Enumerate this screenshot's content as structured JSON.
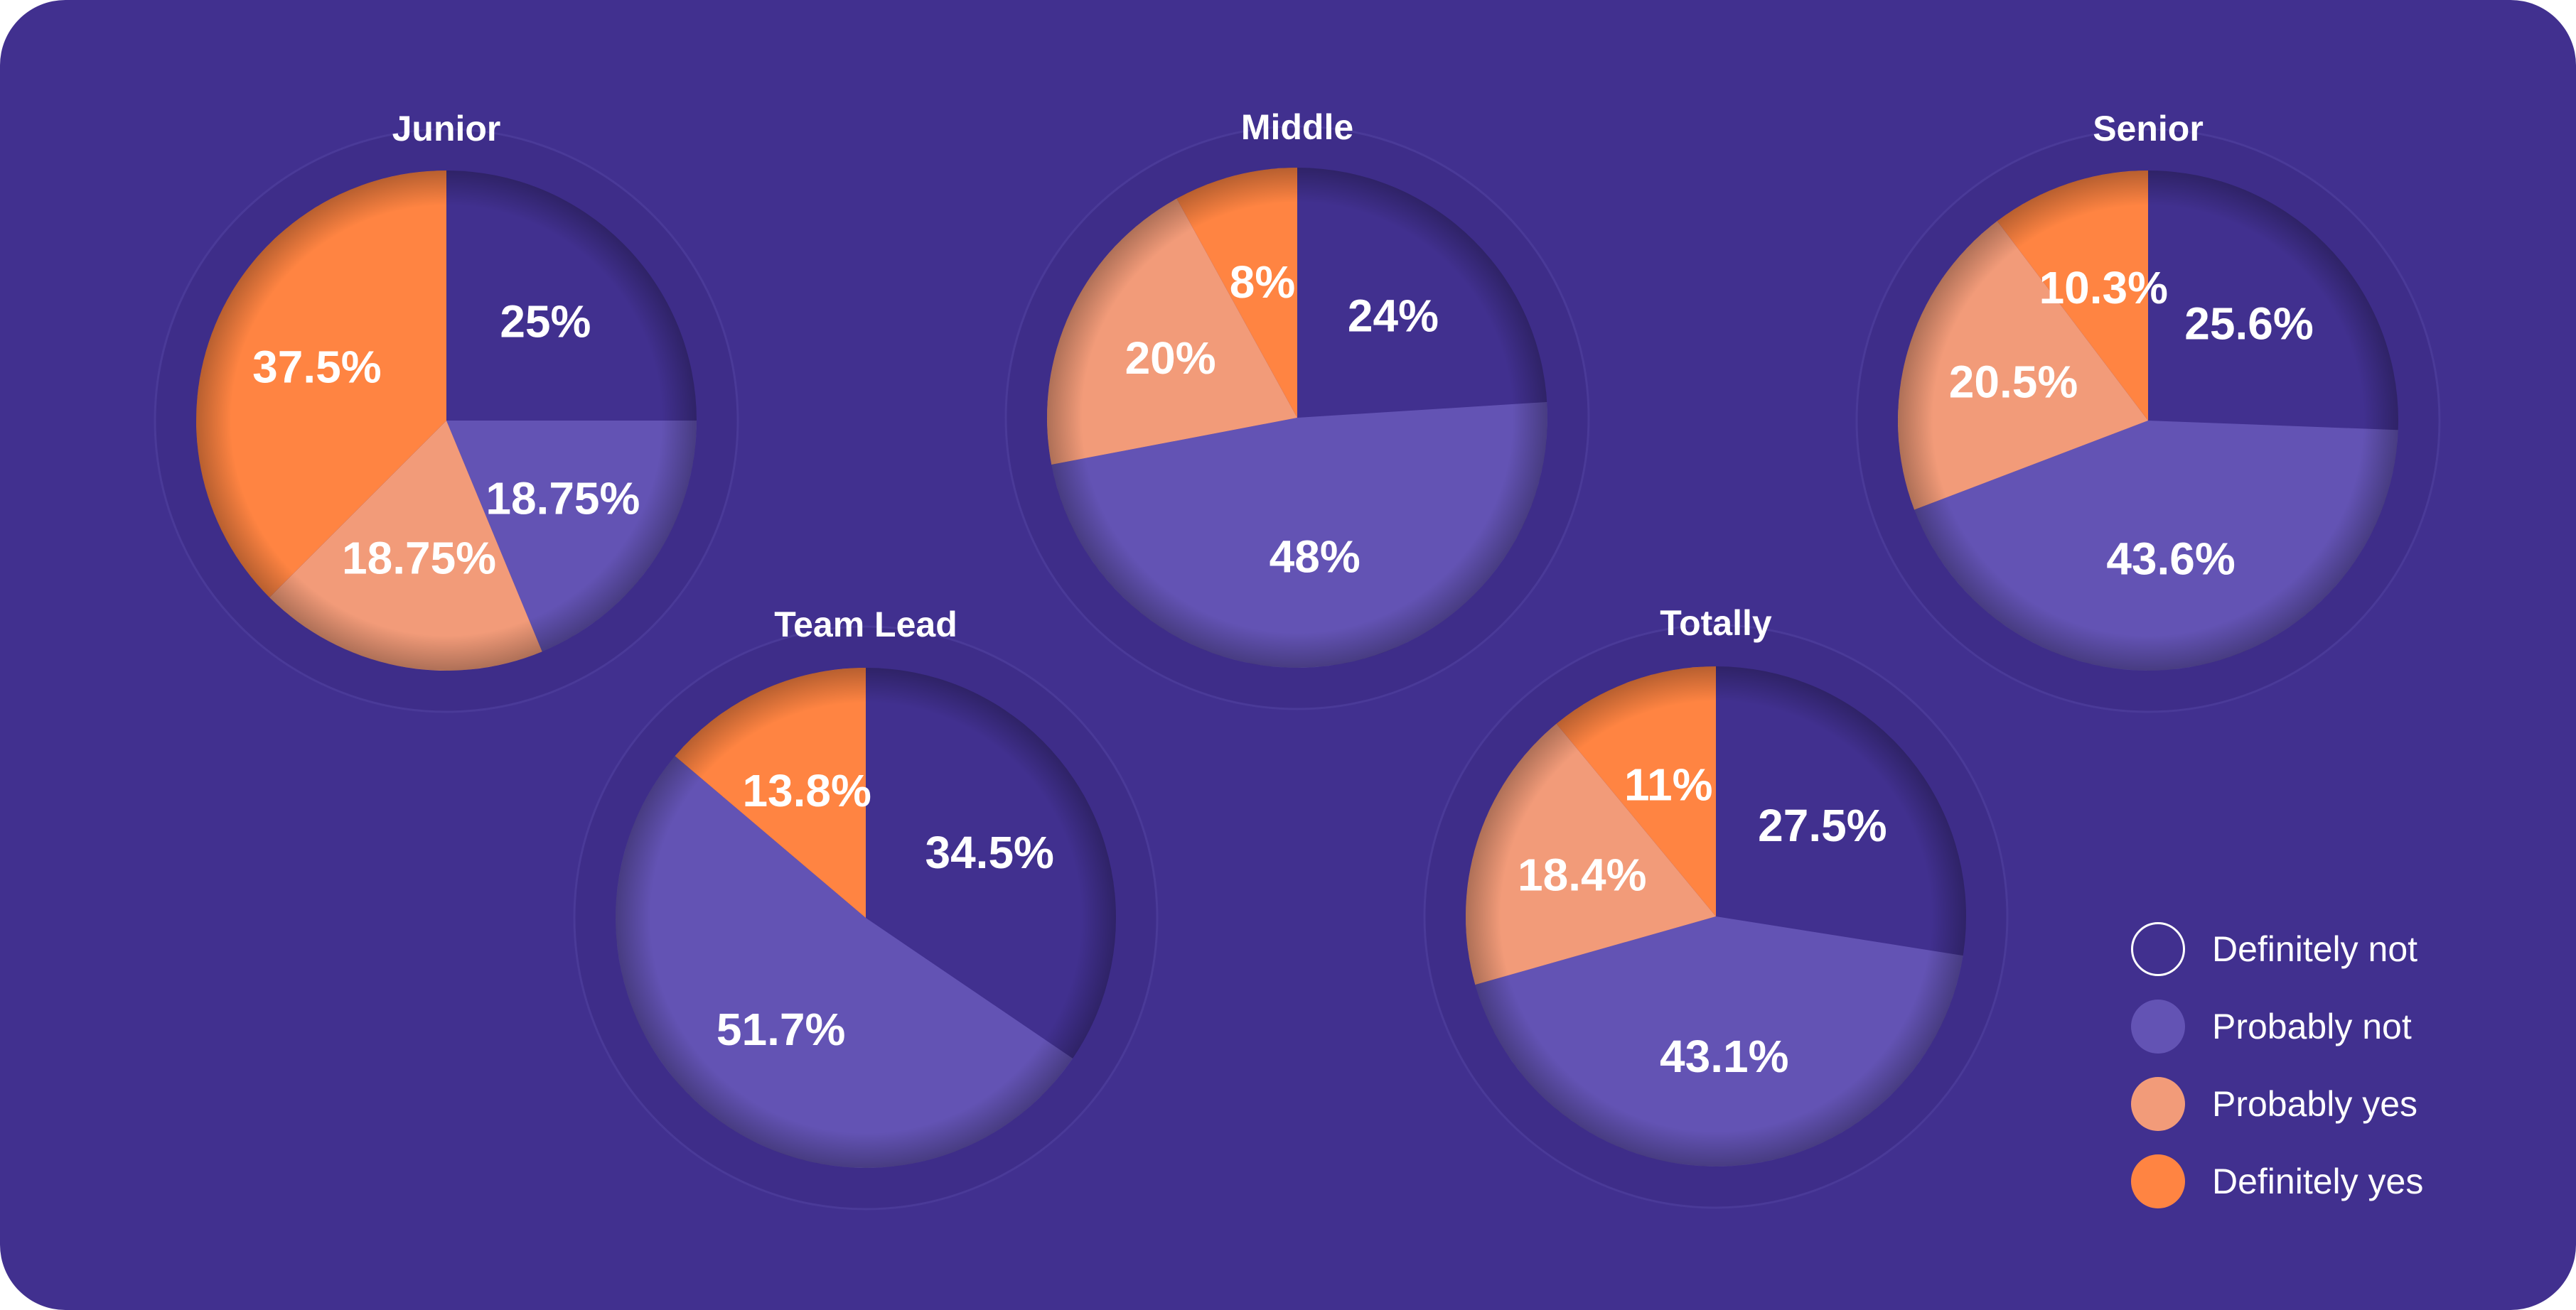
{
  "chart_data": {
    "type": "pie",
    "categories": [
      "Definitely not",
      "Probably not",
      "Probably yes",
      "Definitely yes"
    ],
    "colors": [
      "#41308f",
      "#6353b4",
      "#f29b79",
      "#ff8442"
    ],
    "pies": [
      {
        "title": "Junior",
        "values": [
          25,
          18.75,
          18.75,
          37.5
        ],
        "labels": [
          "25%",
          "18.75%",
          "18.75%",
          "37.5%"
        ]
      },
      {
        "title": "Middle",
        "values": [
          24,
          48,
          20,
          8
        ],
        "labels": [
          "24%",
          "48%",
          "20%",
          "8%"
        ]
      },
      {
        "title": "Senior",
        "values": [
          25.6,
          43.6,
          20.5,
          10.3
        ],
        "labels": [
          "25.6%",
          "43.6%",
          "20.5%",
          "10.3%"
        ]
      },
      {
        "title": "Team Lead",
        "values": [
          34.5,
          51.7,
          0,
          13.8
        ],
        "labels": [
          "34.5%",
          "51.7%",
          "",
          "13.8%"
        ]
      },
      {
        "title": "Totally",
        "values": [
          27.5,
          43.1,
          18.4,
          11
        ],
        "labels": [
          "27.5%",
          "43.1%",
          "18.4%",
          "11%"
        ]
      }
    ],
    "legend": [
      {
        "label": "Definitely not",
        "color": "#41308f",
        "outline": "#ffffff"
      },
      {
        "label": "Probably not",
        "color": "#6353b4"
      },
      {
        "label": "Probably yes",
        "color": "#f29b79"
      },
      {
        "label": "Definitely yes",
        "color": "#ff8442"
      }
    ],
    "legend_position": "bottom-right"
  }
}
